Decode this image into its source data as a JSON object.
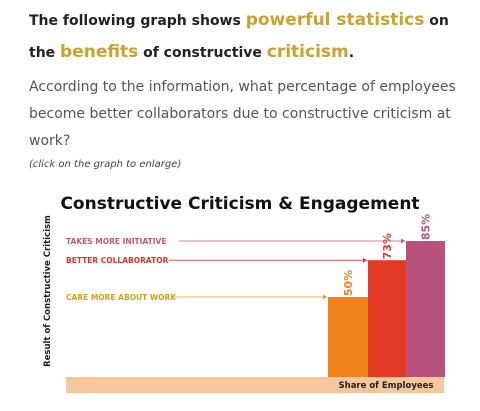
{
  "question": {
    "line1_prefix": "The following graph shows",
    "line1_highlight": "powerful statistics",
    "line1_suffix": "on",
    "line2_prefix": "the",
    "line2_highlight1": "benefits",
    "line2_middle": "of constructive",
    "line2_highlight2": "criticism",
    "line2_end": ".",
    "body": "According to the information, what percentage of employees become better collaborators due to constructive criticism at work?",
    "hint": "(click on the graph to enlarge)"
  },
  "colors": {
    "highlight": "#c9a233",
    "label_gold": "#d4a017",
    "label_red": "#d13a2a",
    "label_pink": "#c2577e",
    "bar_orange": "#f0821e",
    "bar_red": "#e23a25",
    "bar_pink": "#b8527c",
    "base_band": "#f6c79c"
  },
  "chart_data": {
    "type": "bar",
    "title": "Constructive Criticism & Engagement",
    "xlabel": "Share of Employees",
    "ylabel": "Result of Constructive Criticism",
    "categories": [
      "CARE MORE ABOUT WORK",
      "BETTER COLLABORATOR",
      "TAKES MORE INITIATIVE"
    ],
    "values": [
      50,
      73,
      85
    ],
    "value_labels": [
      "50%",
      "73%",
      "85%"
    ],
    "ylim": [
      0,
      85
    ]
  }
}
